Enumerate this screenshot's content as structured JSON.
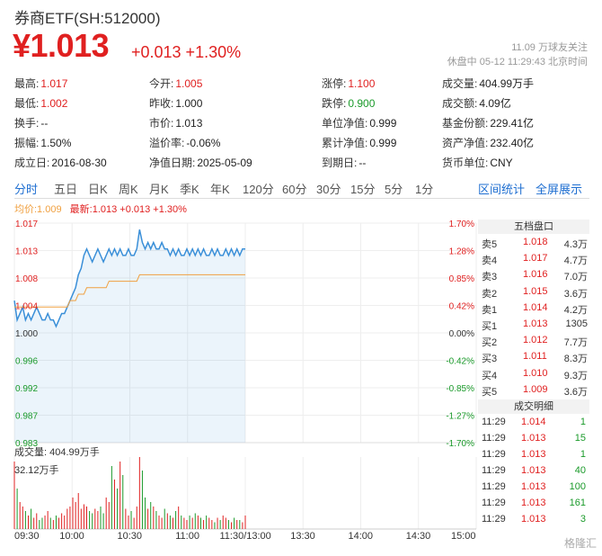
{
  "header": {
    "title": "券商ETF(SH:512000)",
    "price": "¥1.013",
    "change": "+0.013 +1.30%",
    "follow": "11.09 万球友关注",
    "status": "休盘中 05-12 11:29:43 北京时间"
  },
  "stats": [
    {
      "label": "最高:",
      "value": "1.017",
      "color": "red"
    },
    {
      "label": "今开:",
      "value": "1.005",
      "color": "red"
    },
    {
      "label": "涨停:",
      "value": "1.100",
      "color": "red"
    },
    {
      "label": "成交量:",
      "value": "404.99万手",
      "color": ""
    },
    {
      "label": "最低:",
      "value": "1.002",
      "color": "red"
    },
    {
      "label": "昨收:",
      "value": "1.000",
      "color": ""
    },
    {
      "label": "跌停:",
      "value": "0.900",
      "color": "green"
    },
    {
      "label": "成交额:",
      "value": "4.09亿",
      "color": ""
    },
    {
      "label": "换手:",
      "value": "--",
      "color": ""
    },
    {
      "label": "市价:",
      "value": "1.013",
      "color": ""
    },
    {
      "label": "单位净值:",
      "value": "0.999",
      "color": ""
    },
    {
      "label": "基金份额:",
      "value": "229.41亿",
      "color": ""
    },
    {
      "label": "振幅:",
      "value": "1.50%",
      "color": ""
    },
    {
      "label": "溢价率:",
      "value": "-0.06%",
      "color": ""
    },
    {
      "label": "累计净值:",
      "value": "0.999",
      "color": ""
    },
    {
      "label": "资产净值:",
      "value": "232.40亿",
      "color": ""
    },
    {
      "label": "成立日:",
      "value": "2016-08-30",
      "color": ""
    },
    {
      "label": "净值日期:",
      "value": "2025-05-09",
      "color": ""
    },
    {
      "label": "到期日:",
      "value": "--",
      "color": ""
    },
    {
      "label": "货币单位:",
      "value": "CNY",
      "color": ""
    }
  ],
  "tabs": [
    "分时",
    "五日",
    "日K",
    "周K",
    "月K",
    "季K",
    "年K",
    "120分",
    "60分",
    "30分",
    "15分",
    "5分",
    "1分"
  ],
  "tabs_right": [
    "区间统计",
    "全屏展示"
  ],
  "legend": {
    "avg": "均价:1.009",
    "latest": "最新:1.013 +0.013 +1.30%"
  },
  "colors": {
    "up": "#e02020",
    "down": "#1a9a2a",
    "accent": "#1f6fd1",
    "price_line": "#3a8fd8",
    "avg_line": "#f0a040"
  },
  "order_book": {
    "title": "五档盘口",
    "rows": [
      {
        "label": "卖5",
        "price": "1.018",
        "vol": "4.3万"
      },
      {
        "label": "卖4",
        "price": "1.017",
        "vol": "4.7万"
      },
      {
        "label": "卖3",
        "price": "1.016",
        "vol": "7.0万"
      },
      {
        "label": "卖2",
        "price": "1.015",
        "vol": "3.6万"
      },
      {
        "label": "卖1",
        "price": "1.014",
        "vol": "4.2万"
      },
      {
        "label": "买1",
        "price": "1.013",
        "vol": "1305"
      },
      {
        "label": "买2",
        "price": "1.012",
        "vol": "7.7万"
      },
      {
        "label": "买3",
        "price": "1.011",
        "vol": "8.3万"
      },
      {
        "label": "买4",
        "price": "1.010",
        "vol": "9.3万"
      },
      {
        "label": "买5",
        "price": "1.009",
        "vol": "3.6万"
      }
    ]
  },
  "trades": {
    "title": "成交明细",
    "rows": [
      {
        "time": "11:29",
        "price": "1.014",
        "vol": "1"
      },
      {
        "time": "11:29",
        "price": "1.013",
        "vol": "15"
      },
      {
        "time": "11:29",
        "price": "1.013",
        "vol": "1"
      },
      {
        "time": "11:29",
        "price": "1.013",
        "vol": "40"
      },
      {
        "time": "11:29",
        "price": "1.013",
        "vol": "100"
      },
      {
        "time": "11:29",
        "price": "1.013",
        "vol": "161"
      },
      {
        "time": "11:29",
        "price": "1.013",
        "vol": "3"
      }
    ]
  },
  "volume": {
    "label": "成交量: 404.99万手",
    "max": "32.12万手"
  },
  "watermark": "格隆汇",
  "chart_data": {
    "type": "line",
    "title": "",
    "prev_close": 1.0,
    "ylim": [
      0.983,
      1.017
    ],
    "y_ticks": [
      "1.017",
      "1.013",
      "1.008",
      "1.004",
      "1.000",
      "0.996",
      "0.992",
      "0.987",
      "0.983"
    ],
    "y_pct_ticks": [
      "1.70%",
      "1.28%",
      "0.85%",
      "0.42%",
      "0.00%",
      "-0.42%",
      "-0.85%",
      "-1.27%",
      "-1.70%"
    ],
    "x_ticks": [
      "09:30",
      "10:00",
      "10:30",
      "11:00",
      "11:30/13:00",
      "13:30",
      "14:00",
      "14:30",
      "15:00"
    ],
    "series": [
      {
        "name": "最新",
        "values": [
          1.005,
          1.002,
          1.003,
          1.004,
          1.002,
          1.003,
          1.002,
          1.003,
          1.004,
          1.003,
          1.002,
          1.002,
          1.003,
          1.002,
          1.002,
          1.001,
          1.002,
          1.003,
          1.003,
          1.004,
          1.005,
          1.006,
          1.007,
          1.009,
          1.01,
          1.012,
          1.013,
          1.012,
          1.011,
          1.012,
          1.013,
          1.012,
          1.011,
          1.012,
          1.013,
          1.012,
          1.013,
          1.012,
          1.013,
          1.012,
          1.012,
          1.013,
          1.012,
          1.012,
          1.013,
          1.016,
          1.014,
          1.013,
          1.014,
          1.013,
          1.014,
          1.013,
          1.013,
          1.014,
          1.013,
          1.013,
          1.012,
          1.013,
          1.012,
          1.013,
          1.012,
          1.012,
          1.013,
          1.012,
          1.013,
          1.012,
          1.013,
          1.012,
          1.013,
          1.012,
          1.012,
          1.013,
          1.012,
          1.013,
          1.012,
          1.012,
          1.013,
          1.012,
          1.013,
          1.012,
          1.013,
          1.012,
          1.013,
          1.013
        ]
      },
      {
        "name": "均价",
        "values": [
          1.004,
          1.004,
          1.004,
          1.004,
          1.004,
          1.004,
          1.004,
          1.004,
          1.004,
          1.004,
          1.004,
          1.004,
          1.004,
          1.004,
          1.004,
          1.004,
          1.004,
          1.004,
          1.004,
          1.004,
          1.005,
          1.005,
          1.005,
          1.006,
          1.006,
          1.006,
          1.007,
          1.007,
          1.007,
          1.007,
          1.007,
          1.007,
          1.007,
          1.007,
          1.008,
          1.008,
          1.008,
          1.008,
          1.008,
          1.008,
          1.008,
          1.008,
          1.008,
          1.008,
          1.008,
          1.009,
          1.009,
          1.009,
          1.009,
          1.009,
          1.009,
          1.009,
          1.009,
          1.009,
          1.009,
          1.009,
          1.009,
          1.009,
          1.009,
          1.009,
          1.009,
          1.009,
          1.009,
          1.009,
          1.009,
          1.009,
          1.009,
          1.009,
          1.009,
          1.009,
          1.009,
          1.009,
          1.009,
          1.009,
          1.009,
          1.009,
          1.009,
          1.009,
          1.009,
          1.009,
          1.009,
          1.009,
          1.009,
          1.009
        ]
      }
    ],
    "volume_values": [
      30,
      18,
      12,
      10,
      8,
      6,
      9,
      5,
      7,
      4,
      5,
      6,
      8,
      5,
      4,
      6,
      5,
      7,
      6,
      9,
      10,
      14,
      12,
      16,
      9,
      11,
      10,
      8,
      7,
      9,
      8,
      10,
      7,
      14,
      12,
      28,
      22,
      18,
      30,
      24,
      9,
      6,
      8,
      5,
      10,
      32,
      26,
      14,
      9,
      12,
      10,
      8,
      6,
      5,
      9,
      7,
      6,
      5,
      8,
      10,
      6,
      5,
      4,
      6,
      5,
      7,
      6,
      5,
      4,
      6,
      5,
      4,
      3,
      5,
      4,
      6,
      5,
      4,
      3,
      5,
      4,
      4,
      3,
      6
    ]
  }
}
